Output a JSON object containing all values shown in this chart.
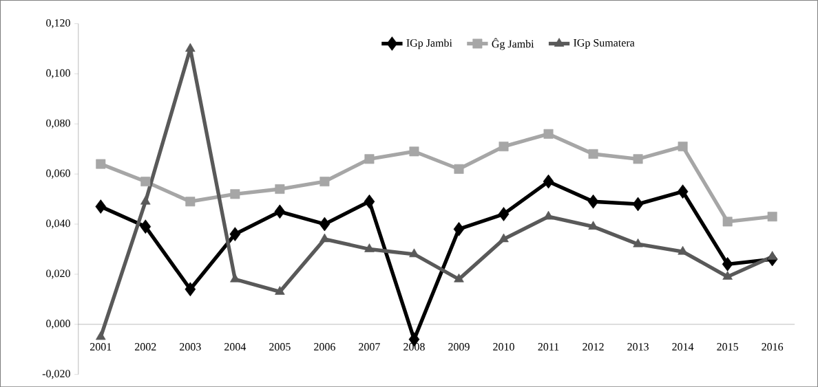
{
  "chart_data": {
    "type": "line",
    "categories": [
      "2001",
      "2002",
      "2003",
      "2004",
      "2005",
      "2006",
      "2007",
      "2008",
      "2009",
      "2010",
      "2011",
      "2012",
      "2013",
      "2014",
      "2015",
      "2016"
    ],
    "series": [
      {
        "name": "IGp Jambi",
        "color": "#000000",
        "marker": "diamond",
        "values": [
          0.047,
          0.039,
          0.014,
          0.036,
          0.045,
          0.04,
          0.049,
          -0.006,
          0.038,
          0.044,
          0.057,
          0.049,
          0.048,
          0.053,
          0.024,
          0.026
        ]
      },
      {
        "name": "Ĝg Jambi",
        "color": "#a6a6a6",
        "marker": "square",
        "values": [
          0.064,
          0.057,
          0.049,
          0.052,
          0.054,
          0.057,
          0.066,
          0.069,
          0.062,
          0.071,
          0.076,
          0.068,
          0.066,
          0.071,
          0.041,
          0.043
        ]
      },
      {
        "name": "IGp Sumatera",
        "color": "#595959",
        "marker": "triangle",
        "values": [
          -0.005,
          0.049,
          0.11,
          0.018,
          0.013,
          0.034,
          0.03,
          0.028,
          0.018,
          0.034,
          0.043,
          0.039,
          0.032,
          0.029,
          0.019,
          0.027
        ]
      }
    ],
    "ylim": [
      -0.02,
      0.12
    ],
    "yticks": [
      {
        "value": -0.02,
        "label": "-0,020"
      },
      {
        "value": 0.0,
        "label": "0,000"
      },
      {
        "value": 0.02,
        "label": "0,020"
      },
      {
        "value": 0.04,
        "label": "0,040"
      },
      {
        "value": 0.06,
        "label": "0,060"
      },
      {
        "value": 0.08,
        "label": "0,080"
      },
      {
        "value": 0.1,
        "label": "0,100"
      },
      {
        "value": 0.12,
        "label": "0,120"
      }
    ],
    "grid": false,
    "legend": "top",
    "line_style": "solid"
  }
}
